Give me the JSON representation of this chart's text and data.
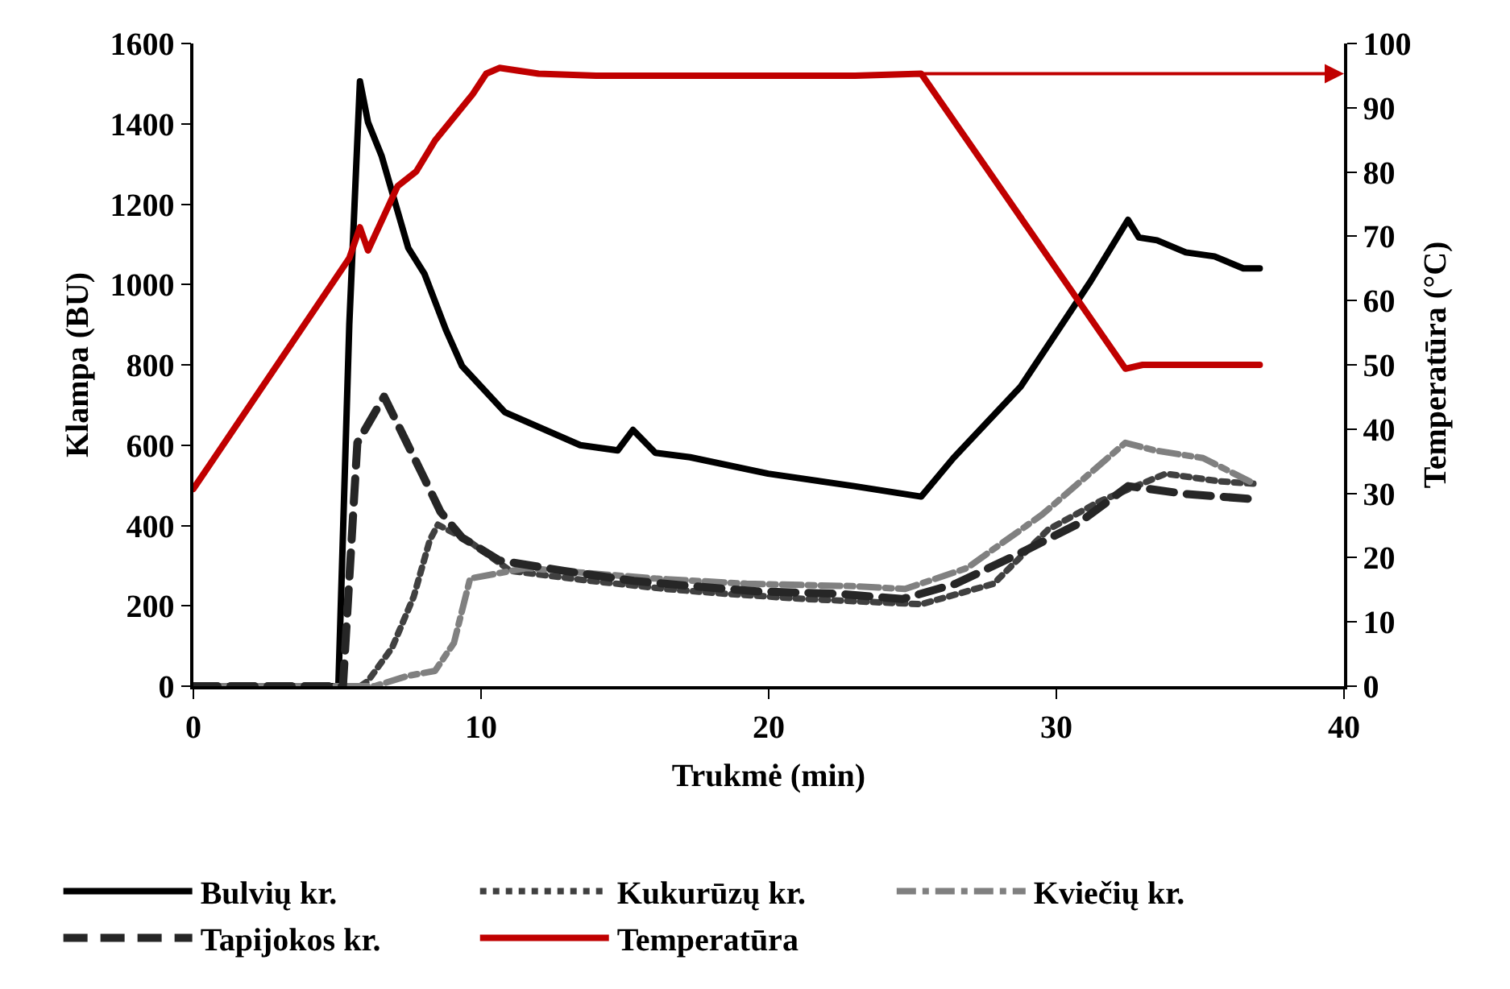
{
  "chart_data": {
    "type": "line",
    "xlabel": "Trukmė (min)",
    "ylabel": "Klampa (BU)",
    "y2label": "Temperatūra (°C)",
    "xlim": [
      0,
      40
    ],
    "xticks": [
      0,
      10,
      20,
      30,
      40
    ],
    "ylim": [
      0,
      1600
    ],
    "yticks": [
      0,
      200,
      400,
      600,
      800,
      1000,
      1200,
      1400,
      1600
    ],
    "y2lim": [
      0,
      100
    ],
    "y2ticks": [
      0,
      10,
      20,
      30,
      40,
      50,
      60,
      70,
      80,
      90,
      100
    ],
    "legend": "bottom",
    "marker": "none",
    "series": [
      {
        "name": "Bulvių kr.",
        "color": "#000000",
        "line_style": "solid",
        "x": [
          0,
          5.04,
          5.42,
          5.79,
          6.07,
          6.54,
          7.47,
          8.03,
          8.78,
          9.34,
          10.83,
          13.45,
          14.75,
          15.28,
          16.06,
          17.27,
          19.98,
          22.97,
          25.3,
          26.42,
          28.76,
          31.19,
          32.49,
          32.87,
          33.5,
          34.5,
          35.5,
          36.5,
          37.07
        ],
        "values": [
          0,
          0,
          900,
          1506,
          1404,
          1321,
          1091,
          1027,
          887,
          797,
          682,
          600,
          587,
          638,
          581,
          570,
          529,
          498,
          472,
          568,
          746,
          1008,
          1161,
          1117,
          1110,
          1080,
          1070,
          1040,
          1040
        ]
      },
      {
        "name": "Kukurūzų kr.",
        "color": "#404040",
        "line_style": "dotted",
        "x": [
          0,
          5.8,
          6.07,
          6.91,
          7.66,
          8.22,
          8.5,
          9.52,
          11.02,
          13.82,
          16.43,
          18.49,
          21.3,
          25.3,
          27.82,
          29.7,
          31.47,
          33.8,
          35.67,
          36.88
        ],
        "values": [
          0,
          0,
          13,
          96,
          223,
          364,
          402,
          364,
          287,
          262,
          242,
          230,
          217,
          204,
          255,
          389,
          459,
          529,
          510,
          504
        ]
      },
      {
        "name": "Kviečių kr.",
        "color": "#808080",
        "line_style": "dashdot",
        "x": [
          0,
          6.3,
          7.47,
          8.4,
          9.06,
          9.62,
          11.58,
          16.06,
          19.23,
          22.97,
          24.74,
          26.89,
          29.5,
          32.4,
          33.42,
          35.1,
          36.88
        ],
        "values": [
          0,
          0,
          26,
          38,
          108,
          268,
          294,
          268,
          255,
          249,
          242,
          294,
          427,
          606,
          587,
          568,
          504
        ]
      },
      {
        "name": "Tapijokos kr.",
        "color": "#262626",
        "line_style": "longdash",
        "x": [
          0,
          5.2,
          5.7,
          6.63,
          8.03,
          8.59,
          9.34,
          10.64,
          12.89,
          15.31,
          17.37,
          19.6,
          22.4,
          24.65,
          26.5,
          28.76,
          30.7,
          32.5,
          34.55,
          36.8
        ],
        "values": [
          0,
          0,
          606,
          721,
          517,
          434,
          370,
          313,
          287,
          262,
          249,
          236,
          230,
          217,
          255,
          332,
          402,
          498,
          478,
          466
        ]
      },
      {
        "name": "Temperatūra",
        "color": "#c00000",
        "line_style": "solid",
        "axis": "y2",
        "x": [
          0,
          5.42,
          5.79,
          6.07,
          7.1,
          7.75,
          8.4,
          9.71,
          10.18,
          10.64,
          12,
          14,
          17,
          20,
          23,
          25.3,
          32.4,
          33,
          35,
          37.07
        ],
        "values": [
          30.7,
          66.6,
          71.4,
          67.8,
          77.8,
          80.1,
          84.9,
          92.1,
          95.3,
          96.2,
          95.3,
          95,
          95,
          95,
          95,
          95.3,
          49.4,
          50,
          50,
          50
        ]
      }
    ]
  }
}
